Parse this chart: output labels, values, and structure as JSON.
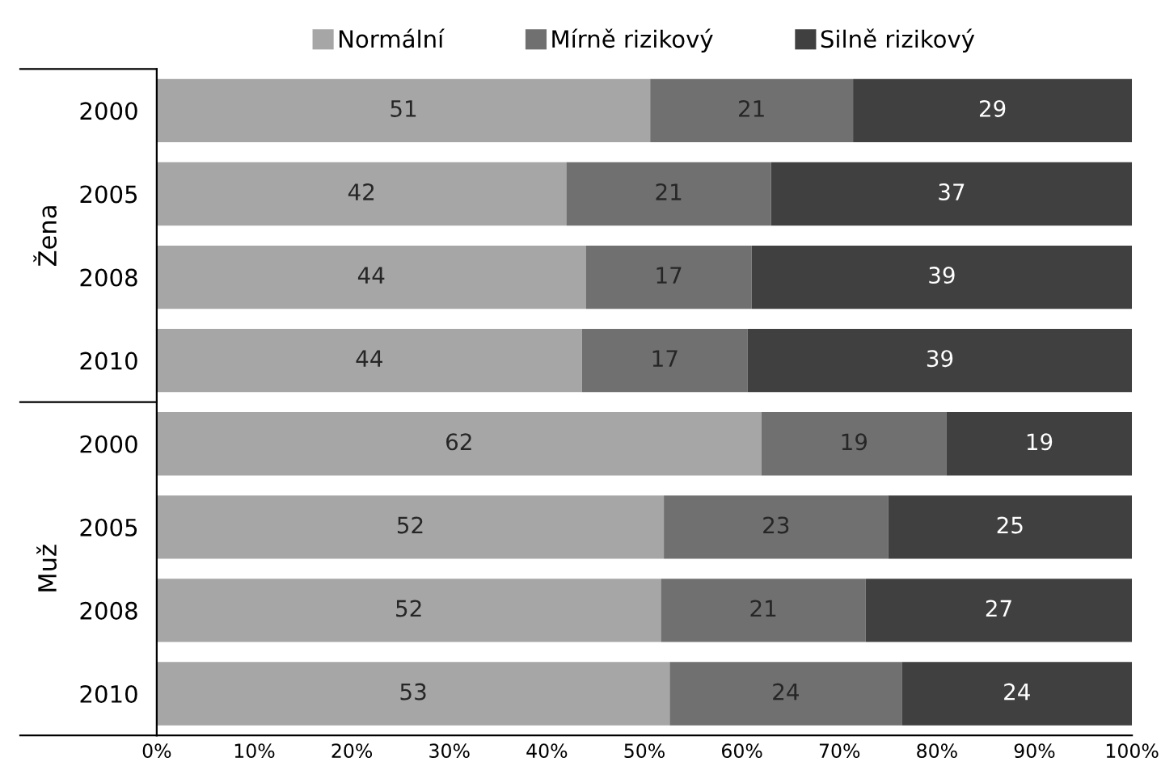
{
  "chart_data": {
    "type": "bar",
    "orientation": "horizontal",
    "stacked": true,
    "categories": [
      "2000",
      "2005",
      "2008",
      "2010",
      "2000",
      "2005",
      "2008",
      "2010"
    ],
    "series": [
      {
        "name": "Normální",
        "color": "#a6a6a6",
        "values": [
          50.6,
          42,
          44,
          43.6,
          62,
          52,
          51.7,
          52.6
        ],
        "value_labels": [
          "51",
          "42",
          "44",
          "44",
          "62",
          "52",
          "52",
          "53"
        ]
      },
      {
        "name": "Mírně rizikový",
        "color": "#707070",
        "values": [
          20.8,
          21,
          17,
          17.0,
          19,
          23,
          21.0,
          23.8
        ],
        "value_labels": [
          "21",
          "21",
          "17",
          "17",
          "19",
          "23",
          "21",
          "24"
        ]
      },
      {
        "name": "Silně rizikový",
        "color": "#404040",
        "values": [
          28.6,
          37,
          39,
          39.4,
          19,
          25,
          27.3,
          23.6
        ],
        "value_labels": [
          "29",
          "37",
          "39",
          "39",
          "19",
          "25",
          "27",
          "24"
        ]
      }
    ],
    "annotations": [
      "Žena",
      "Muž"
    ],
    "xlim": [
      0,
      100
    ],
    "xticks": [
      {
        "value": 0,
        "label": "0%"
      },
      {
        "value": 10,
        "label": "10%"
      },
      {
        "value": 20,
        "label": "20%"
      },
      {
        "value": 30,
        "label": "30%"
      },
      {
        "value": 40,
        "label": "40%"
      },
      {
        "value": 50,
        "label": "50%"
      },
      {
        "value": 60,
        "label": "60%"
      },
      {
        "value": 70,
        "label": "70%"
      },
      {
        "value": 80,
        "label": "80%"
      },
      {
        "value": 90,
        "label": "90%"
      },
      {
        "value": 100,
        "label": "100%"
      }
    ],
    "legend": "top",
    "grid": false
  }
}
